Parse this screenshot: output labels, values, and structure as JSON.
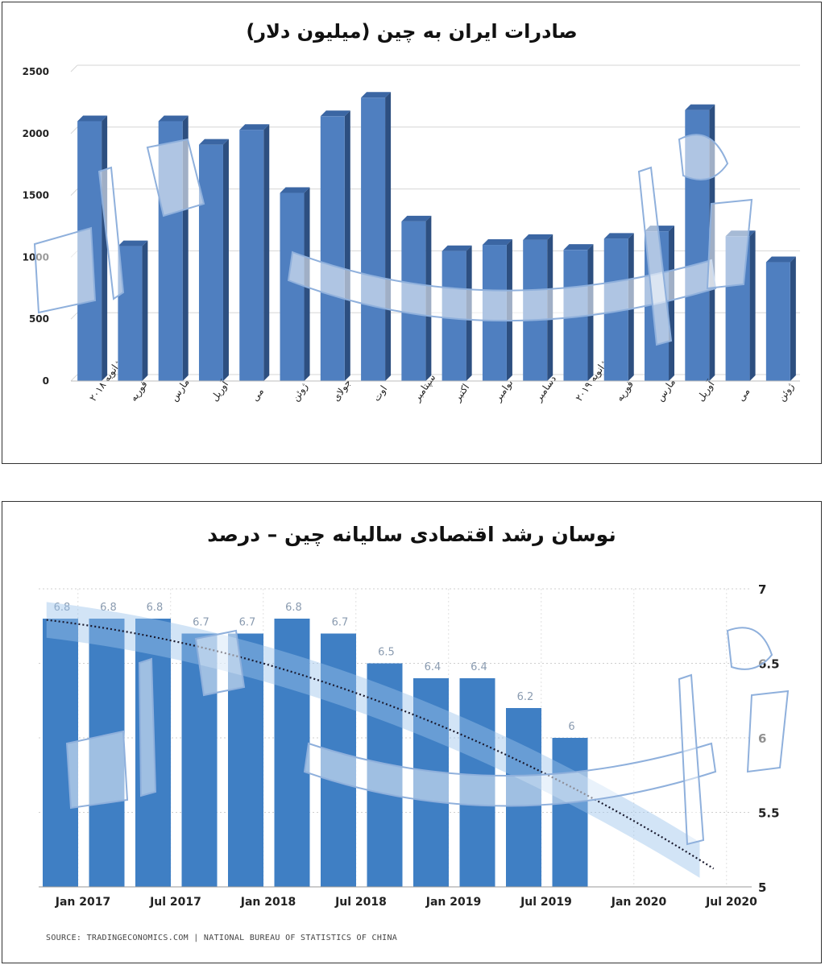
{
  "charts": {
    "chart1": {
      "title": "صادرات ایران به چین (میلیون دلار)",
      "accent_color": "#4f7fc0",
      "side_color": "#2d4f80",
      "top_color": "#3b66a3"
    },
    "chart2": {
      "title": "نوسان رشد اقتصادی سالیانه چین – درصد",
      "source": "SOURCE: TRADINGECONOMICS.COM | NATIONAL BUREAU OF STATISTICS OF CHINA",
      "bar_color": "#3f7fc4",
      "band_color": "#9cc3ec",
      "trend_color": "#1a1a2e"
    }
  },
  "chart_data": [
    {
      "type": "bar",
      "title": "صادرات ایران به چین (میلیون دلار)",
      "categories": [
        "ژانویه ۲۰۱۸",
        "فوریه",
        "مارس",
        "آوریل",
        "می",
        "ژوئن",
        "جولای",
        "اوت",
        "سپتامبر",
        "اکتبر",
        "نوامبر",
        "دسامبر",
        "ژانویه ۲۰۱۹",
        "فوریه",
        "مارس",
        "آوریل",
        "می",
        "ژوئن"
      ],
      "values": [
        2100,
        1090,
        2100,
        1910,
        2030,
        1520,
        2140,
        2290,
        1290,
        1050,
        1100,
        1140,
        1060,
        1150,
        1210,
        2190,
        1170,
        960
      ],
      "y_ticks": [
        "0",
        "500",
        "1000",
        "1500",
        "2000",
        "2500"
      ],
      "ylim": [
        0,
        2500
      ],
      "grid": true
    },
    {
      "type": "bar",
      "title": "نوسان رشد اقتصادی سالیانه چین – درصد",
      "x": [
        "2017-Q1",
        "2017-Q2",
        "2017-Q3",
        "2017-Q4",
        "2018-Q1",
        "2018-Q2",
        "2018-Q3",
        "2018-Q4",
        "2019-Q1",
        "2019-Q2",
        "2019-Q3",
        "2019-Q4"
      ],
      "values": [
        6.8,
        6.8,
        6.8,
        6.7,
        6.7,
        6.8,
        6.7,
        6.5,
        6.4,
        6.4,
        6.2,
        6
      ],
      "data_labels": [
        "6.8",
        "6.8",
        "6.8",
        "6.7",
        "6.7",
        "6.8",
        "6.7",
        "6.5",
        "6.4",
        "6.4",
        "6.2",
        "6"
      ],
      "x_tick_labels": [
        "Jan 2017",
        "Jul 2017",
        "Jan 2018",
        "Jul 2018",
        "Jan 2019",
        "Jul 2019",
        "Jan 2020",
        "Jul 2020"
      ],
      "y_ticks": [
        "5",
        "5.5",
        "6",
        "6.5",
        "7"
      ],
      "ylim": [
        5,
        7
      ],
      "y_axis_side": "right",
      "grid": true,
      "trend_line": "dotted polynomial forecast extending to Jul 2020",
      "forecast_band": true
    }
  ]
}
